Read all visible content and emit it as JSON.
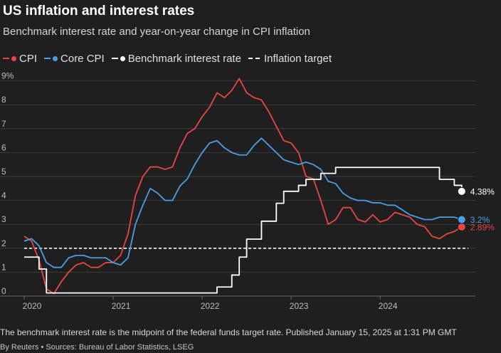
{
  "title": "US inflation and interest rates",
  "subtitle": "Benchmark interest rate and year-on-year change in CPI inflation",
  "note": "The benchmark interest rate is the midpoint of the federal funds target rate. Published January 15, 2025 at 1:31 PM GMT",
  "source": "By Reuters • Sources: Bureau of Labor Statistics, LSEG",
  "legend": {
    "cpi": "CPI",
    "core_cpi": "Core CPI",
    "benchmark": "Benchmark interest rate",
    "target": "Inflation target"
  },
  "colors": {
    "cpi": "#e84545",
    "core_cpi": "#4a9ee6",
    "benchmark": "#ffffff",
    "target": "#ffffff",
    "grid": "#3d3d3d",
    "axis_text": "#bdbdbd"
  },
  "chart_data": {
    "type": "line",
    "x_start": "2020-01",
    "x_step": "month",
    "x_ticks": [
      "2020",
      "2021",
      "2022",
      "2023",
      "2024"
    ],
    "y_ticks": [
      "0",
      "1",
      "2",
      "3",
      "4",
      "5",
      "6",
      "7",
      "8",
      "9%"
    ],
    "ylim": [
      0,
      9
    ],
    "grid": true,
    "legend_position": "top-left",
    "inflation_target": 2,
    "series": [
      {
        "name": "CPI",
        "key": "cpi",
        "end_label": "2.89%",
        "values": [
          2.5,
          2.3,
          1.5,
          0.3,
          0.1,
          0.6,
          1.0,
          1.3,
          1.4,
          1.2,
          1.2,
          1.4,
          1.4,
          1.7,
          2.6,
          4.2,
          5.0,
          5.4,
          5.4,
          5.3,
          5.4,
          6.2,
          6.8,
          7.0,
          7.5,
          7.9,
          8.5,
          8.3,
          8.6,
          9.1,
          8.5,
          8.3,
          8.2,
          7.7,
          7.1,
          6.5,
          6.4,
          6.0,
          5.0,
          4.9,
          4.0,
          3.0,
          3.2,
          3.7,
          3.7,
          3.2,
          3.1,
          3.4,
          3.1,
          3.2,
          3.5,
          3.4,
          3.3,
          3.0,
          2.9,
          2.5,
          2.4,
          2.6,
          2.7,
          2.89
        ]
      },
      {
        "name": "Core CPI",
        "key": "core_cpi",
        "end_label": "3.2%",
        "values": [
          2.3,
          2.4,
          2.1,
          1.4,
          1.2,
          1.2,
          1.6,
          1.7,
          1.7,
          1.6,
          1.6,
          1.6,
          1.4,
          1.3,
          1.6,
          3.0,
          3.8,
          4.5,
          4.3,
          4.0,
          4.0,
          4.6,
          4.9,
          5.5,
          6.0,
          6.4,
          6.5,
          6.2,
          6.0,
          5.9,
          5.9,
          6.3,
          6.6,
          6.3,
          6.0,
          5.7,
          5.6,
          5.5,
          5.6,
          5.5,
          5.3,
          4.8,
          4.7,
          4.3,
          4.1,
          4.0,
          4.0,
          3.9,
          3.9,
          3.8,
          3.8,
          3.6,
          3.4,
          3.3,
          3.2,
          3.2,
          3.3,
          3.3,
          3.3,
          3.2
        ]
      },
      {
        "name": "Benchmark interest rate",
        "key": "benchmark",
        "step": true,
        "end_label": "4.38%",
        "values": [
          1.63,
          1.63,
          1.13,
          0.13,
          0.13,
          0.13,
          0.13,
          0.13,
          0.13,
          0.13,
          0.13,
          0.13,
          0.13,
          0.13,
          0.13,
          0.13,
          0.13,
          0.13,
          0.13,
          0.13,
          0.13,
          0.13,
          0.13,
          0.13,
          0.13,
          0.13,
          0.38,
          0.38,
          0.88,
          1.63,
          2.38,
          2.38,
          3.13,
          3.13,
          3.88,
          4.38,
          4.38,
          4.63,
          4.88,
          4.88,
          5.13,
          5.13,
          5.38,
          5.38,
          5.38,
          5.38,
          5.38,
          5.38,
          5.38,
          5.38,
          5.38,
          5.38,
          5.38,
          5.38,
          5.38,
          5.38,
          4.88,
          4.88,
          4.63,
          4.38
        ]
      }
    ]
  }
}
